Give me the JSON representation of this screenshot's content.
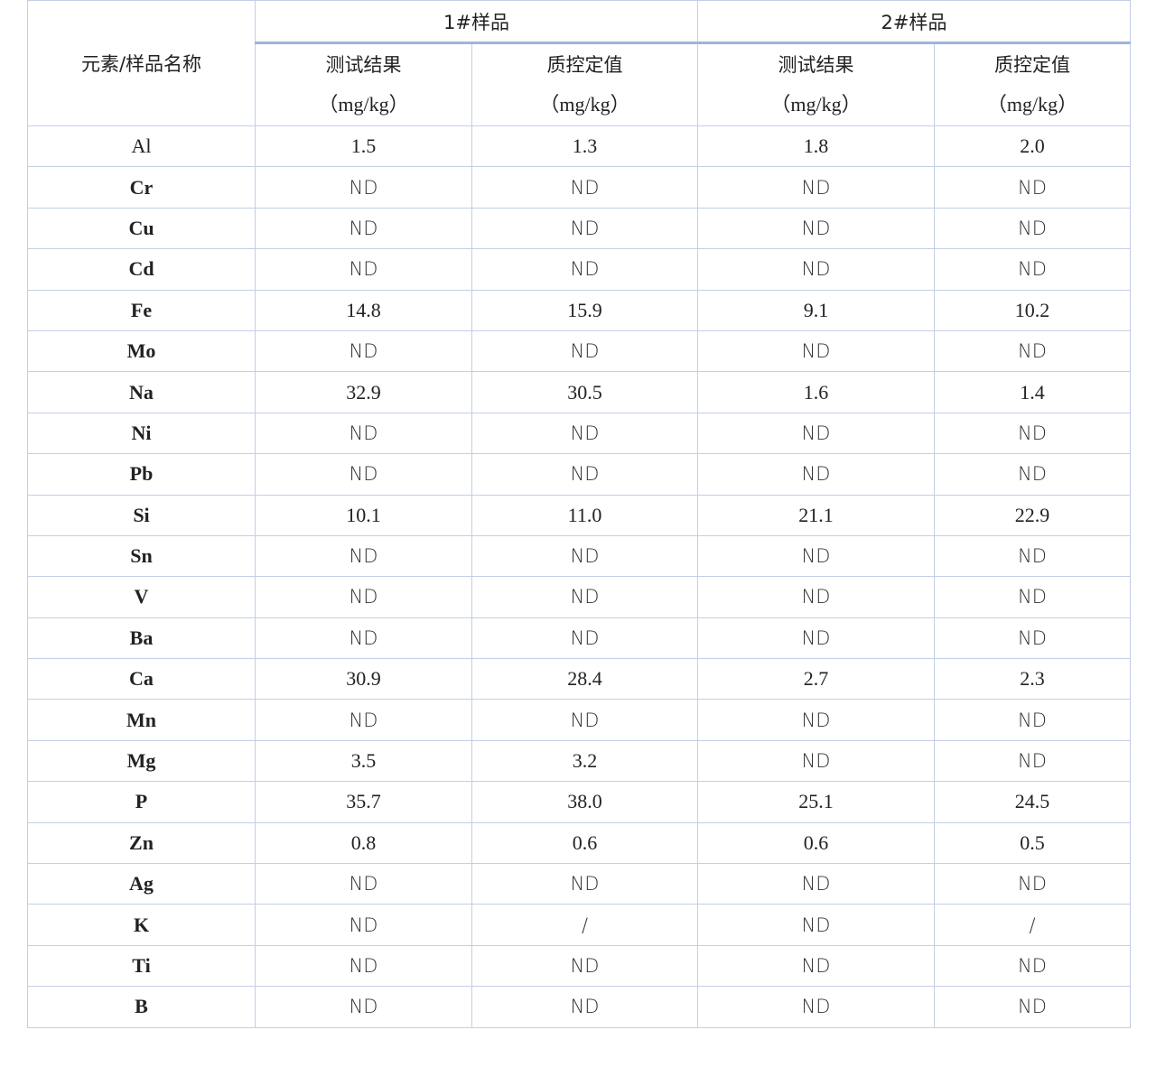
{
  "table": {
    "corner": "元素/样品名称",
    "groups": [
      {
        "name": "1#样品",
        "columns": [
          {
            "label": "测试结果",
            "unit": "（mg/kg）"
          },
          {
            "label": "质控定值",
            "unit": "（mg/kg）"
          }
        ]
      },
      {
        "name": "2#样品",
        "columns": [
          {
            "label": "测试结果",
            "unit": "（mg/kg）"
          },
          {
            "label": "质控定值",
            "unit": "（mg/kg）"
          }
        ]
      }
    ],
    "rows": [
      {
        "element": "Al",
        "values": [
          "1.5",
          "1.3",
          "1.8",
          "2.0"
        ]
      },
      {
        "element": "Cr",
        "values": [
          "ND",
          "ND",
          "ND",
          "ND"
        ]
      },
      {
        "element": "Cu",
        "values": [
          "ND",
          "ND",
          "ND",
          "ND"
        ]
      },
      {
        "element": "Cd",
        "values": [
          "ND",
          "ND",
          "ND",
          "ND"
        ]
      },
      {
        "element": "Fe",
        "values": [
          "14.8",
          "15.9",
          "9.1",
          "10.2"
        ]
      },
      {
        "element": "Mo",
        "values": [
          "ND",
          "ND",
          "ND",
          "ND"
        ]
      },
      {
        "element": "Na",
        "values": [
          "32.9",
          "30.5",
          "1.6",
          "1.4"
        ]
      },
      {
        "element": "Ni",
        "values": [
          "ND",
          "ND",
          "ND",
          "ND"
        ]
      },
      {
        "element": "Pb",
        "values": [
          "ND",
          "ND",
          "ND",
          "ND"
        ]
      },
      {
        "element": "Si",
        "values": [
          "10.1",
          "11.0",
          "21.1",
          "22.9"
        ]
      },
      {
        "element": "Sn",
        "values": [
          "ND",
          "ND",
          "ND",
          "ND"
        ]
      },
      {
        "element": "V",
        "values": [
          "ND",
          "ND",
          "ND",
          "ND"
        ]
      },
      {
        "element": "Ba",
        "values": [
          "ND",
          "ND",
          "ND",
          "ND"
        ]
      },
      {
        "element": "Ca",
        "values": [
          "30.9",
          "28.4",
          "2.7",
          "2.3"
        ]
      },
      {
        "element": "Mn",
        "values": [
          "ND",
          "ND",
          "ND",
          "ND"
        ]
      },
      {
        "element": "Mg",
        "values": [
          "3.5",
          "3.2",
          "ND",
          "ND"
        ]
      },
      {
        "element": "P",
        "values": [
          "35.7",
          "38.0",
          "25.1",
          "24.5"
        ]
      },
      {
        "element": "Zn",
        "values": [
          "0.8",
          "0.6",
          "0.6",
          "0.5"
        ]
      },
      {
        "element": "Ag",
        "values": [
          "ND",
          "ND",
          "ND",
          "ND"
        ]
      },
      {
        "element": "K",
        "values": [
          "ND",
          "/",
          "ND",
          "/"
        ]
      },
      {
        "element": "Ti",
        "values": [
          "ND",
          "ND",
          "ND",
          "ND"
        ]
      },
      {
        "element": "B",
        "values": [
          "ND",
          "ND",
          "ND",
          "ND"
        ]
      }
    ]
  }
}
